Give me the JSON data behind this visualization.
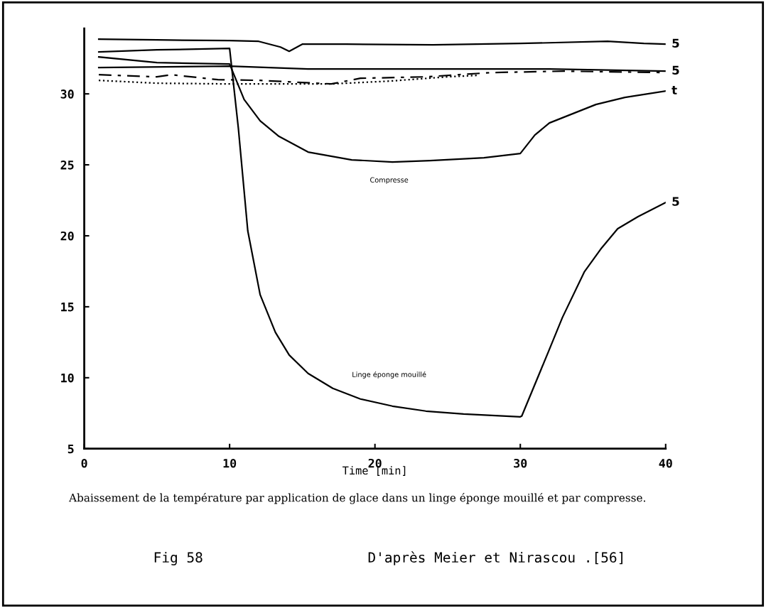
{
  "chart_data": {
    "type": "line",
    "xlabel": "Time [min]",
    "xlim": [
      0,
      40
    ],
    "xticks": [
      0,
      10,
      20,
      30,
      40
    ],
    "ylim": [
      5,
      34.6
    ],
    "yticks": [
      5,
      10,
      15,
      20,
      25,
      30
    ],
    "grid": false,
    "marker": "none",
    "series": [
      {
        "name": "5",
        "color": "#000000",
        "line_style": "solid",
        "x": [
          1,
          5,
          10,
          12,
          13.5,
          14.1,
          15,
          18,
          24,
          30,
          36,
          38.5,
          40
        ],
        "values": [
          33.85,
          33.8,
          33.75,
          33.7,
          33.3,
          33.0,
          33.5,
          33.5,
          33.45,
          33.55,
          33.7,
          33.55,
          33.5
        ]
      },
      {
        "name": "5",
        "color": "#000000",
        "line_style": "solid",
        "x": [
          1,
          5,
          10,
          10.6,
          11.25,
          12.1,
          13.15,
          14.1,
          15.4,
          17.1,
          19,
          21.2,
          23.5,
          26.1,
          30,
          30.1,
          31.9,
          32.9,
          34.4,
          35.6,
          36.7,
          38.1,
          40
        ],
        "values": [
          32.95,
          33.1,
          33.2,
          27.6,
          20.35,
          15.85,
          13.2,
          11.6,
          10.3,
          9.25,
          8.5,
          8.0,
          7.65,
          7.45,
          7.25,
          7.3,
          11.75,
          14.25,
          17.45,
          19.15,
          20.5,
          21.35,
          22.35
        ]
      },
      {
        "name": "t",
        "color": "#000000",
        "line_style": "solid",
        "x": [
          1,
          5,
          10,
          11,
          12.1,
          13.4,
          15.4,
          18.4,
          21.2,
          23.8,
          27.5,
          30,
          31,
          32,
          33.6,
          35.2,
          37.2,
          40
        ],
        "values": [
          32.6,
          32.2,
          32.1,
          29.6,
          28.1,
          27.0,
          25.9,
          25.35,
          25.2,
          25.3,
          25.5,
          25.8,
          27.1,
          27.95,
          28.6,
          29.25,
          29.75,
          30.2
        ]
      },
      {
        "name": "5",
        "color": "#000000",
        "line_style": "solid",
        "x": [
          1,
          10,
          15.4,
          23.5,
          32,
          40
        ],
        "values": [
          31.85,
          31.95,
          31.75,
          31.75,
          31.75,
          31.6
        ]
      },
      {
        "color": "#000000",
        "line_style": "dashed",
        "x": [
          1,
          5,
          6,
          9.2,
          12.1,
          17,
          19,
          23.5,
          28,
          33,
          40
        ],
        "values": [
          31.35,
          31.2,
          31.35,
          31.0,
          30.95,
          30.7,
          31.1,
          31.2,
          31.5,
          31.6,
          31.5
        ]
      },
      {
        "color": "#000000",
        "line_style": "dotted",
        "x": [
          1,
          5,
          10,
          13.7,
          17,
          21,
          25,
          27
        ],
        "values": [
          30.95,
          30.75,
          30.7,
          30.7,
          30.7,
          30.9,
          31.2,
          31.3
        ]
      }
    ],
    "annotations": [
      "Compresse",
      "Linge éponge mouillé",
      "Abaissement de la température par application de glace dans un linge éponge mouillé et par compresse.",
      "Fig 58",
      "D'après Meier et Nirascou .[56]"
    ]
  }
}
